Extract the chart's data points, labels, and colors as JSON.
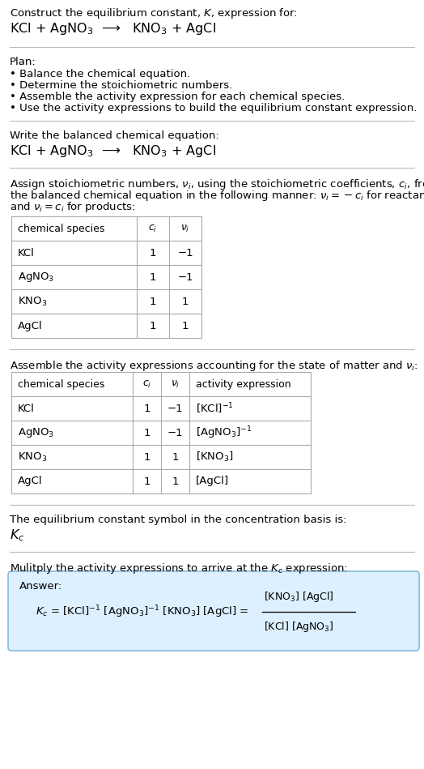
{
  "title_line1": "Construct the equilibrium constant, $K$, expression for:",
  "title_line2": "KCl + AgNO$_3$  ⟶   KNO$_3$ + AgCl",
  "plan_header": "Plan:",
  "plan_bullets": [
    "• Balance the chemical equation.",
    "• Determine the stoichiometric numbers.",
    "• Assemble the activity expression for each chemical species.",
    "• Use the activity expressions to build the equilibrium constant expression."
  ],
  "balanced_header": "Write the balanced chemical equation:",
  "balanced_eq": "KCl + AgNO$_3$  ⟶   KNO$_3$ + AgCl",
  "stoich_lines": [
    "Assign stoichiometric numbers, $\\nu_i$, using the stoichiometric coefficients, $c_i$, from",
    "the balanced chemical equation in the following manner: $\\nu_i = -c_i$ for reactants",
    "and $\\nu_i = c_i$ for products:"
  ],
  "table1_cols": [
    "chemical species",
    "$c_i$",
    "$\\nu_i$"
  ],
  "table1_rows": [
    [
      "KCl",
      "1",
      "−1"
    ],
    [
      "AgNO$_3$",
      "1",
      "−1"
    ],
    [
      "KNO$_3$",
      "1",
      "1"
    ],
    [
      "AgCl",
      "1",
      "1"
    ]
  ],
  "activity_header": "Assemble the activity expressions accounting for the state of matter and $\\nu_i$:",
  "table2_cols": [
    "chemical species",
    "$c_i$",
    "$\\nu_i$",
    "activity expression"
  ],
  "table2_rows": [
    [
      "KCl",
      "1",
      "−1",
      "[KCl]$^{-1}$"
    ],
    [
      "AgNO$_3$",
      "1",
      "−1",
      "[AgNO$_3$]$^{-1}$"
    ],
    [
      "KNO$_3$",
      "1",
      "1",
      "[KNO$_3$]"
    ],
    [
      "AgCl",
      "1",
      "1",
      "[AgCl]"
    ]
  ],
  "kc_header": "The equilibrium constant symbol in the concentration basis is:",
  "kc_symbol": "$K_c$",
  "multiply_header": "Mulitply the activity expressions to arrive at the $K_c$ expression:",
  "answer_label": "Answer:",
  "bg_color": "#ffffff",
  "answer_box_color": "#ddf0ff",
  "answer_box_border": "#88bbdd",
  "text_color": "#000000",
  "sep_color": "#bbbbbb",
  "table_border_color": "#aaaaaa",
  "font_size": 9.5
}
